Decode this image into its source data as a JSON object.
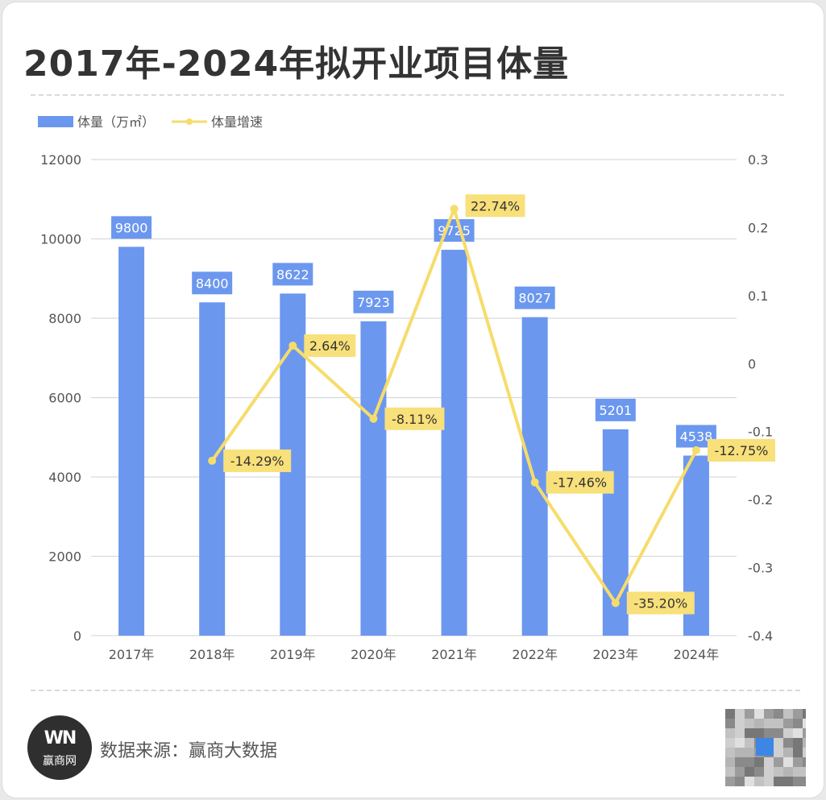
{
  "title": "2017年-2024年拟开业项目体量",
  "legend": {
    "bar_label": "体量（万㎡）",
    "line_label": "体量增速"
  },
  "colors": {
    "bar": "#6b97ef",
    "line": "#f6dc6b",
    "label_bar_bg": "#6b97ef",
    "label_line_bg": "#f8e07a"
  },
  "chart_data": {
    "type": "bar+line",
    "title": "2017年-2024年拟开业项目体量",
    "categories": [
      "2017年",
      "2018年",
      "2019年",
      "2020年",
      "2021年",
      "2022年",
      "2023年",
      "2024年"
    ],
    "series": [
      {
        "name": "体量（万㎡）",
        "type": "bar",
        "axis": "left",
        "values": [
          9800,
          8400,
          8622,
          7923,
          9725,
          8027,
          5201,
          4538
        ],
        "labels": [
          "9800",
          "8400",
          "8622",
          "7923",
          "9725",
          "8027",
          "5201",
          "4538"
        ]
      },
      {
        "name": "体量增速",
        "type": "line",
        "axis": "right",
        "values": [
          null,
          -0.1429,
          0.0264,
          -0.0811,
          0.2274,
          -0.1746,
          -0.352,
          -0.1275
        ],
        "labels": [
          null,
          "-14.29%",
          "2.64%",
          "-8.11%",
          "22.74%",
          "-17.46%",
          "-35.20%",
          "-12.75%"
        ]
      }
    ],
    "y_left": {
      "min": 0,
      "max": 12000,
      "ticks": [
        0,
        2000,
        4000,
        6000,
        8000,
        10000,
        12000
      ],
      "tick_labels": [
        "0",
        "2000",
        "4000",
        "6000",
        "8000",
        "10000",
        "12000"
      ]
    },
    "y_right": {
      "min": -0.4,
      "max": 0.3,
      "ticks": [
        -0.4,
        -0.3,
        -0.2,
        -0.1,
        0,
        0.1,
        0.2,
        0.3
      ],
      "tick_labels": [
        "-0.4",
        "-0.3",
        "-0.2",
        "-0.1",
        "0",
        "0.1",
        "0.2",
        "0.3"
      ]
    },
    "grid": true,
    "legend_position": "top-left"
  },
  "footer": {
    "logo_mark": "WN",
    "logo_text": "赢商网",
    "source": "数据来源：赢商大数据"
  }
}
